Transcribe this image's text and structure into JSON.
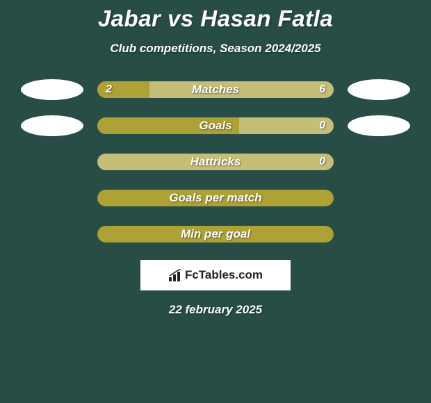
{
  "title": "Jabar vs Hasan Fatla",
  "subtitle": "Club competitions, Season 2024/2025",
  "background_color": "#274d46",
  "bar_colors": {
    "olive": "#aea136",
    "light_olive": "#c5be78"
  },
  "ellipse_color": "#ffffff",
  "text_color": "#ffffff",
  "stats": [
    {
      "label": "Matches",
      "left_val": "2",
      "right_val": "6",
      "left_pct": 22,
      "bg_color": "#c5be78",
      "fill_color": "#aea136",
      "show_ellipses": true,
      "show_values": true
    },
    {
      "label": "Goals",
      "left_val": "",
      "right_val": "0",
      "left_pct": 60,
      "bg_color": "#c5be78",
      "fill_color": "#aea136",
      "show_ellipses": true,
      "show_values": true
    },
    {
      "label": "Hattricks",
      "left_val": "",
      "right_val": "0",
      "left_pct": 0,
      "bg_color": "#c5be78",
      "fill_color": "#aea136",
      "show_ellipses": false,
      "show_values": true
    },
    {
      "label": "Goals per match",
      "left_val": "",
      "right_val": "",
      "left_pct": 100,
      "bg_color": "#aea136",
      "fill_color": "#aea136",
      "show_ellipses": false,
      "show_values": false
    },
    {
      "label": "Min per goal",
      "left_val": "",
      "right_val": "",
      "left_pct": 100,
      "bg_color": "#aea136",
      "fill_color": "#aea136",
      "show_ellipses": false,
      "show_values": false
    }
  ],
  "watermark": "FcTables.com",
  "date": "22 february 2025"
}
